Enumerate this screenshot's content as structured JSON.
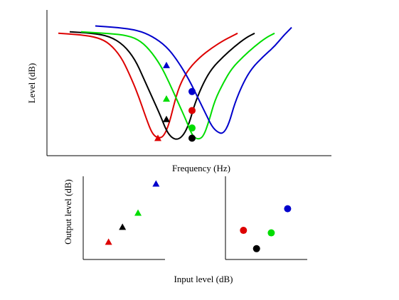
{
  "chart_data": [
    {
      "type": "line",
      "ylabel": "Level (dB)",
      "xlabel": "Frequency (Hz)",
      "grid": false,
      "legend": "none",
      "x_ticks": [],
      "y_ticks": [],
      "xlim": [
        0,
        100
      ],
      "ylim": [
        0,
        100
      ],
      "series": [
        {
          "color": "#dd0000",
          "points": [
            [
              4,
              84
            ],
            [
              12,
              83
            ],
            [
              18,
              81
            ],
            [
              22,
              77
            ],
            [
              26,
              68
            ],
            [
              29,
              56
            ],
            [
              32,
              42
            ],
            [
              35,
              25
            ],
            [
              37,
              15
            ],
            [
              39,
              12
            ],
            [
              41,
              13
            ],
            [
              43,
              22
            ],
            [
              45,
              38
            ],
            [
              47,
              50
            ],
            [
              50,
              60
            ],
            [
              54,
              68
            ],
            [
              58,
              74
            ],
            [
              62,
              79
            ],
            [
              65,
              82
            ],
            [
              67,
              84
            ]
          ],
          "triangle": [
            [
              39,
              12
            ]
          ],
          "circle": [
            [
              51,
              31
            ]
          ]
        },
        {
          "color": "#000000",
          "points": [
            [
              8,
              85
            ],
            [
              16,
              84
            ],
            [
              22,
              82
            ],
            [
              27,
              76
            ],
            [
              31,
              66
            ],
            [
              34,
              53
            ],
            [
              37,
              40
            ],
            [
              40,
              27
            ],
            [
              42,
              17
            ],
            [
              44,
              12
            ],
            [
              46,
              11
            ],
            [
              48,
              14
            ],
            [
              50,
              22
            ],
            [
              52,
              36
            ],
            [
              55,
              50
            ],
            [
              58,
              60
            ],
            [
              62,
              68
            ],
            [
              66,
              75
            ],
            [
              70,
              81
            ],
            [
              73,
              84
            ]
          ],
          "triangle": [
            [
              42,
              25
            ]
          ],
          "circle": [
            [
              51,
              12
            ]
          ]
        },
        {
          "color": "#00dd00",
          "points": [
            [
              12,
              85
            ],
            [
              20,
              84
            ],
            [
              27,
              83
            ],
            [
              32,
              80
            ],
            [
              36,
              73
            ],
            [
              40,
              62
            ],
            [
              43,
              50
            ],
            [
              46,
              37
            ],
            [
              49,
              24
            ],
            [
              51,
              14
            ],
            [
              53,
              11
            ],
            [
              55,
              13
            ],
            [
              57,
              24
            ],
            [
              59,
              38
            ],
            [
              62,
              50
            ],
            [
              65,
              60
            ],
            [
              69,
              68
            ],
            [
              73,
              75
            ],
            [
              77,
              81
            ],
            [
              80,
              84
            ]
          ],
          "triangle": [
            [
              42,
              39
            ]
          ],
          "circle": [
            [
              51,
              19
            ]
          ]
        },
        {
          "color": "#0000cc",
          "points": [
            [
              17,
              89
            ],
            [
              25,
              88
            ],
            [
              32,
              86
            ],
            [
              37,
              82
            ],
            [
              42,
              75
            ],
            [
              46,
              65
            ],
            [
              50,
              52
            ],
            [
              53,
              40
            ],
            [
              56,
              28
            ],
            [
              58,
              20
            ],
            [
              60,
              16
            ],
            [
              62,
              15
            ],
            [
              64,
              22
            ],
            [
              66,
              36
            ],
            [
              69,
              50
            ],
            [
              72,
              60
            ],
            [
              76,
              68
            ],
            [
              80,
              75
            ],
            [
              83,
              82
            ],
            [
              85,
              86
            ],
            [
              86,
              88
            ]
          ],
          "triangle": [
            [
              42,
              62
            ]
          ],
          "circle": [
            [
              51,
              44
            ]
          ]
        }
      ]
    },
    {
      "type": "scatter",
      "ylabel": "Output level (dB)",
      "xlabel": "",
      "grid": false,
      "legend": "none",
      "xlim": [
        0,
        100
      ],
      "ylim": [
        0,
        100
      ],
      "marker": "triangle",
      "points": [
        {
          "x": 31,
          "y": 21,
          "color": "#dd0000"
        },
        {
          "x": 48,
          "y": 39,
          "color": "#000000"
        },
        {
          "x": 67,
          "y": 56,
          "color": "#00dd00"
        },
        {
          "x": 89,
          "y": 91,
          "color": "#0000cc"
        }
      ]
    },
    {
      "type": "scatter",
      "ylabel": "",
      "xlabel": "",
      "grid": false,
      "legend": "none",
      "xlim": [
        0,
        100
      ],
      "ylim": [
        0,
        100
      ],
      "marker": "circle",
      "points": [
        {
          "x": 22,
          "y": 35,
          "color": "#dd0000"
        },
        {
          "x": 38,
          "y": 13,
          "color": "#000000"
        },
        {
          "x": 56,
          "y": 32,
          "color": "#00dd00"
        },
        {
          "x": 76,
          "y": 61,
          "color": "#0000cc"
        }
      ]
    }
  ],
  "shared_xlabel": "Input level (dB)"
}
